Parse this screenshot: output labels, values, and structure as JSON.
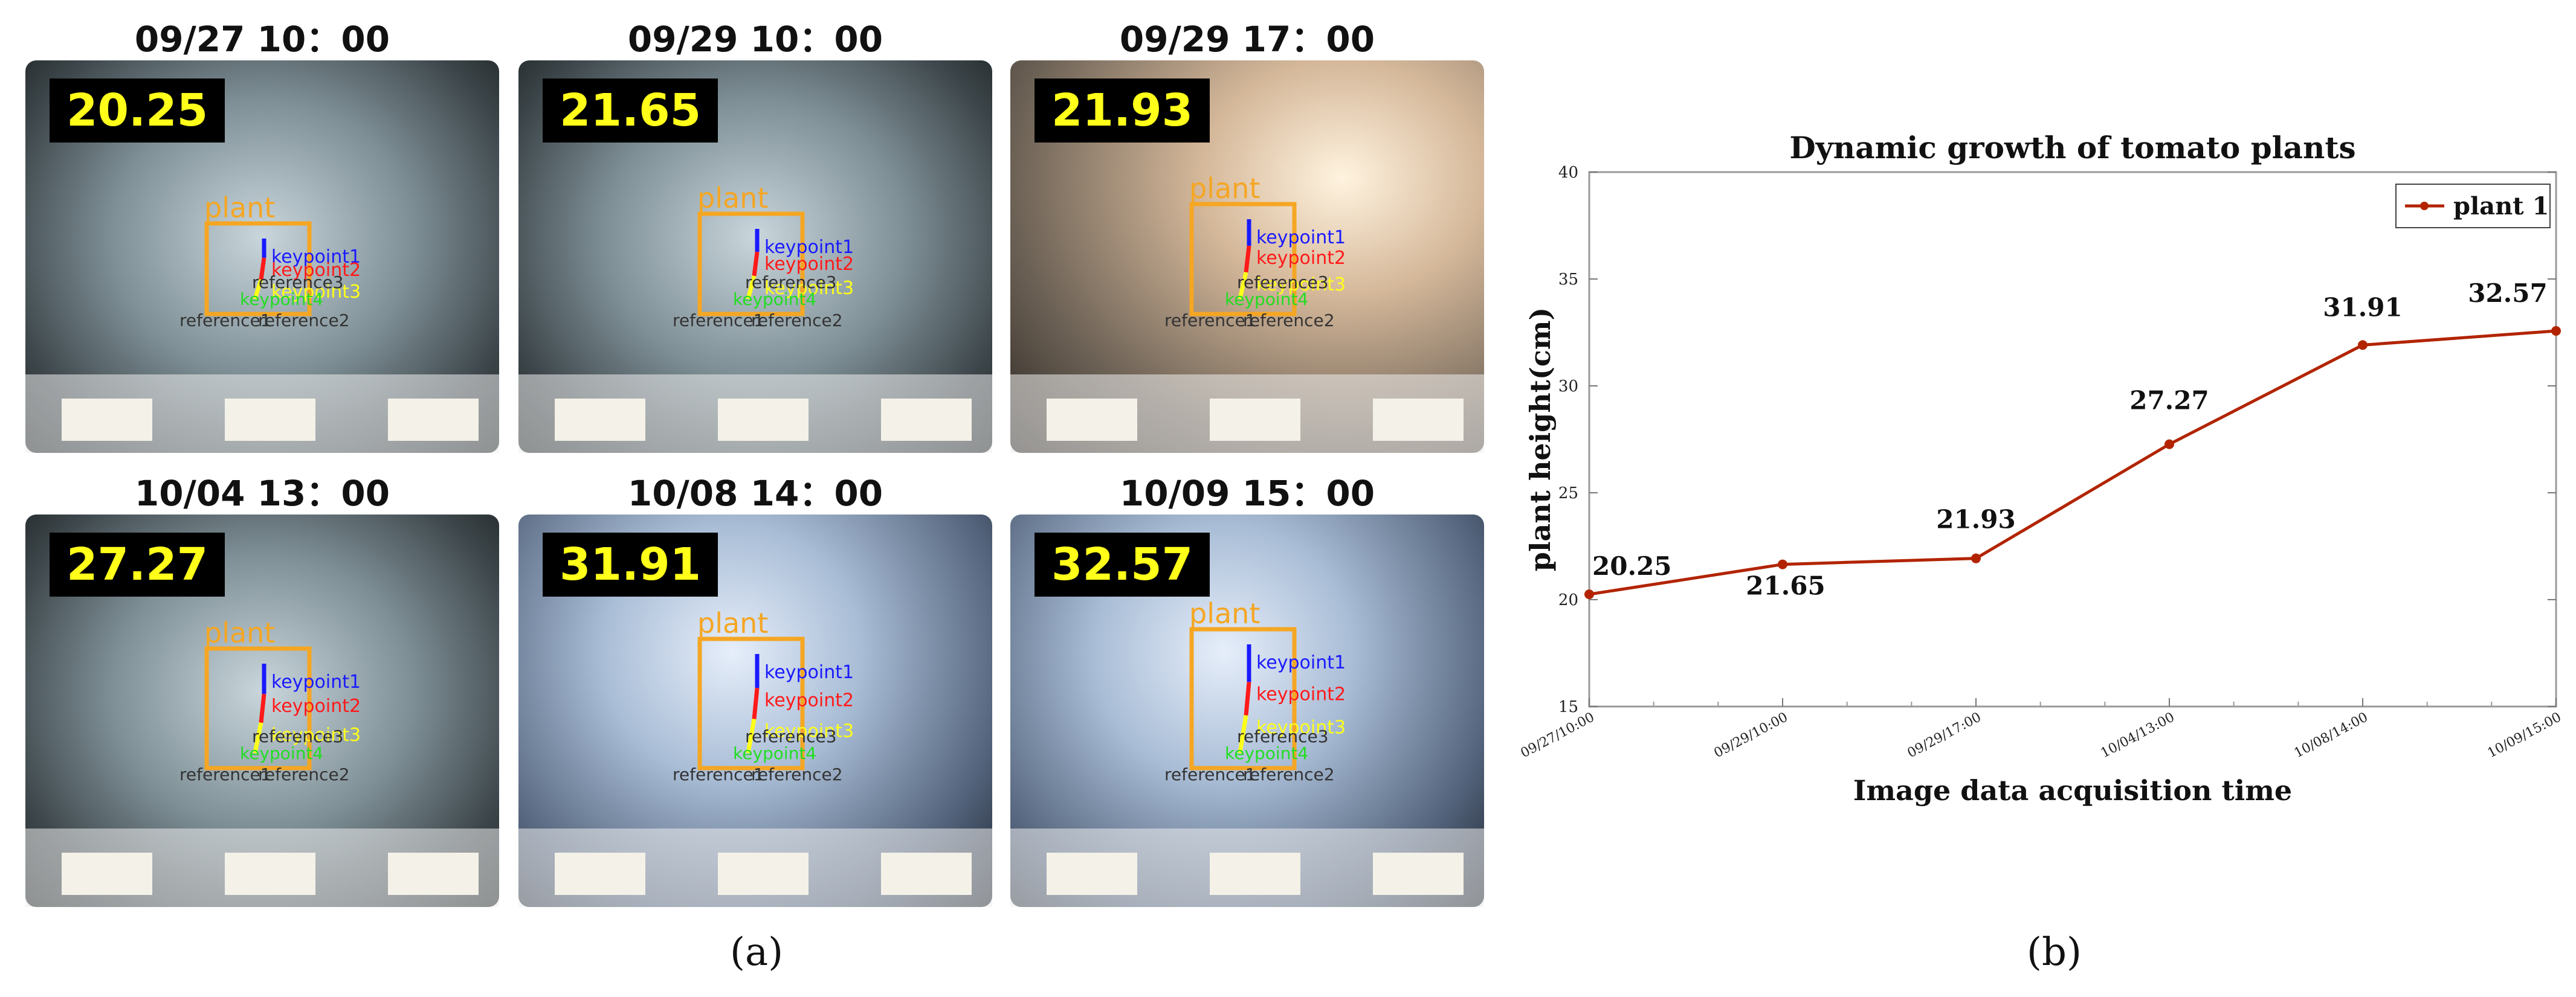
{
  "panel_a": {
    "label": "(a)",
    "tiles": [
      {
        "caption": "09/27 10：00",
        "value": "20.25",
        "tone": "neutral",
        "labels": {
          "plant": "plant",
          "kp1": "keypoint1",
          "kp2": "keypoint2",
          "kp3": "keypoint3",
          "kp4": "keypoint4",
          "r1": "reference1",
          "r2": "reference2",
          "r3": "reference3"
        }
      },
      {
        "caption": "09/29 10：00",
        "value": "21.65",
        "tone": "neutral",
        "labels": {
          "plant": "plant",
          "kp1": "keypoint1",
          "kp2": "keypoint2",
          "kp3": "keypoint3",
          "kp4": "keypoint4",
          "r1": "reference1",
          "r2": "reference2",
          "r3": "reference3"
        }
      },
      {
        "caption": "09/29 17：00",
        "value": "21.93",
        "tone": "warm",
        "labels": {
          "plant": "plant",
          "kp1": "keypoint1",
          "kp2": "keypoint2",
          "kp3": "keypoint3",
          "kp4": "keypoint4",
          "r1": "reference1",
          "r2": "reference2",
          "r3": "reference3"
        }
      },
      {
        "caption": "10/04 13：00",
        "value": "27.27",
        "tone": "neutral",
        "labels": {
          "plant": "plant",
          "kp1": "keypoint1",
          "kp2": "keypoint2",
          "kp3": "keypoint3",
          "kp4": "keypoint4",
          "r1": "reference1",
          "r2": "reference2",
          "r3": "reference3"
        }
      },
      {
        "caption": "10/08 14：00",
        "value": "31.91",
        "tone": "cool",
        "labels": {
          "plant": "plant",
          "kp1": "keypoint1",
          "kp2": "keypoint2",
          "kp3": "keypoint3",
          "kp4": "keypoint4",
          "r1": "reference1",
          "r2": "reference2",
          "r3": "reference3"
        }
      },
      {
        "caption": "10/09 15：00",
        "value": "32.57",
        "tone": "cool",
        "labels": {
          "plant": "plant",
          "kp1": "keypoint1",
          "kp2": "keypoint2",
          "kp3": "keypoint3",
          "kp4": "keypoint4",
          "r1": "reference1",
          "r2": "reference2",
          "r3": "reference3"
        }
      }
    ],
    "colors": {
      "box": "#f5a623",
      "kp1": "#1a1aff",
      "kp2": "#ff1a1a",
      "kp3": "#ffff1a",
      "kp4": "#22dd22",
      "value_text": "#ffff1a"
    }
  },
  "panel_b": {
    "label": "(b)"
  },
  "chart_data": {
    "type": "line",
    "title": "Dynamic growth of tomato plants",
    "xlabel": "Image data acquisition time",
    "ylabel": "plant height(cm)",
    "categories": [
      "09/27/10:00",
      "09/29/10:00",
      "09/29/17:00",
      "10/04/13:00",
      "10/08/14:00",
      "10/09/15:00"
    ],
    "series": [
      {
        "name": "plant 1",
        "values": [
          20.25,
          21.65,
          21.93,
          27.27,
          31.91,
          32.57
        ],
        "color": "#b22400"
      }
    ],
    "data_labels": [
      "20.25",
      "21.65",
      "21.93",
      "27.27",
      "31.91",
      "32.57"
    ],
    "ylim": [
      15,
      40
    ],
    "yticks": [
      "15",
      "20",
      "25",
      "30",
      "35",
      "40"
    ],
    "legend": "top-right",
    "grid": false
  }
}
